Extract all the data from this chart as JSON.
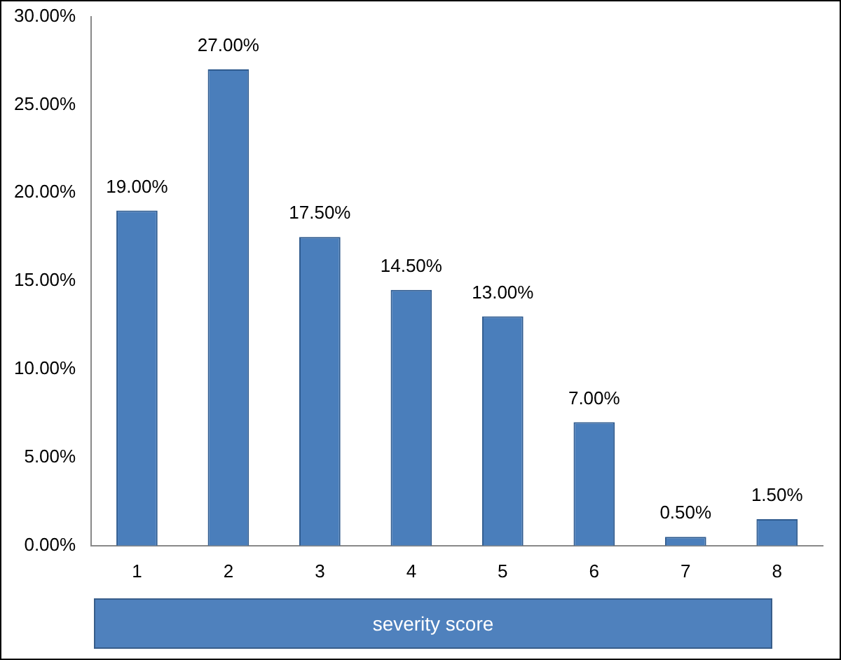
{
  "chart_data": {
    "type": "bar",
    "xlabel": "severity score",
    "categories": [
      "1",
      "2",
      "3",
      "4",
      "5",
      "6",
      "7",
      "8"
    ],
    "values": [
      19,
      27,
      17.5,
      14.5,
      13,
      7,
      0.5,
      1.5
    ],
    "value_labels": [
      "19.00%",
      "27.00%",
      "17.50%",
      "14.50%",
      "13.00%",
      "7.00%",
      "0.50%",
      "1.50%"
    ],
    "color": "#4a7ebb",
    "ylim": [
      0,
      30
    ],
    "yticks": [
      {
        "value": 0,
        "label": "0.00%"
      },
      {
        "value": 5,
        "label": "5.00%"
      },
      {
        "value": 10,
        "label": "10.00%"
      },
      {
        "value": 15,
        "label": "15.00%"
      },
      {
        "value": 20,
        "label": "20.00%"
      },
      {
        "value": 25,
        "label": "25.00%"
      },
      {
        "value": 30,
        "label": "30.00%"
      }
    ],
    "grid": false,
    "legend": false
  }
}
